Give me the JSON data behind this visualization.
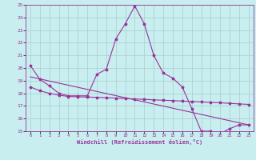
{
  "xlabel": "Windchill (Refroidissement éolien,°C)",
  "bg_color": "#c8eef0",
  "line_color": "#993399",
  "grid_color": "#aacccc",
  "xlim": [
    -0.5,
    23.5
  ],
  "ylim": [
    15,
    25
  ],
  "xticks": [
    0,
    1,
    2,
    3,
    4,
    5,
    6,
    7,
    8,
    9,
    10,
    11,
    12,
    13,
    14,
    15,
    16,
    17,
    18,
    19,
    20,
    21,
    22,
    23
  ],
  "yticks": [
    15,
    16,
    17,
    18,
    19,
    20,
    21,
    22,
    23,
    24,
    25
  ],
  "main_x": [
    0,
    1,
    2,
    3,
    4,
    5,
    6,
    7,
    8,
    9,
    10,
    11,
    12,
    13,
    14,
    15,
    16,
    17,
    18,
    19,
    20,
    21,
    22,
    23
  ],
  "main_y": [
    20.2,
    19.1,
    18.6,
    18.0,
    17.8,
    17.8,
    17.8,
    19.5,
    19.9,
    22.3,
    23.5,
    24.9,
    23.5,
    21.0,
    19.6,
    19.2,
    18.5,
    16.8,
    15.0,
    15.0,
    14.8,
    15.2,
    15.5,
    15.5
  ],
  "flat_x": [
    0,
    1,
    2,
    3,
    4,
    5,
    6,
    7,
    8,
    9,
    10,
    11,
    12,
    13,
    14,
    15,
    16,
    17,
    18,
    19,
    20,
    21,
    22,
    23
  ],
  "flat_y": [
    18.5,
    18.2,
    18.0,
    17.85,
    17.75,
    17.72,
    17.7,
    17.68,
    17.65,
    17.62,
    17.58,
    17.55,
    17.52,
    17.48,
    17.45,
    17.42,
    17.38,
    17.35,
    17.32,
    17.28,
    17.25,
    17.2,
    17.16,
    17.12
  ],
  "trend_x": [
    0,
    23
  ],
  "trend_y": [
    19.3,
    15.5
  ]
}
